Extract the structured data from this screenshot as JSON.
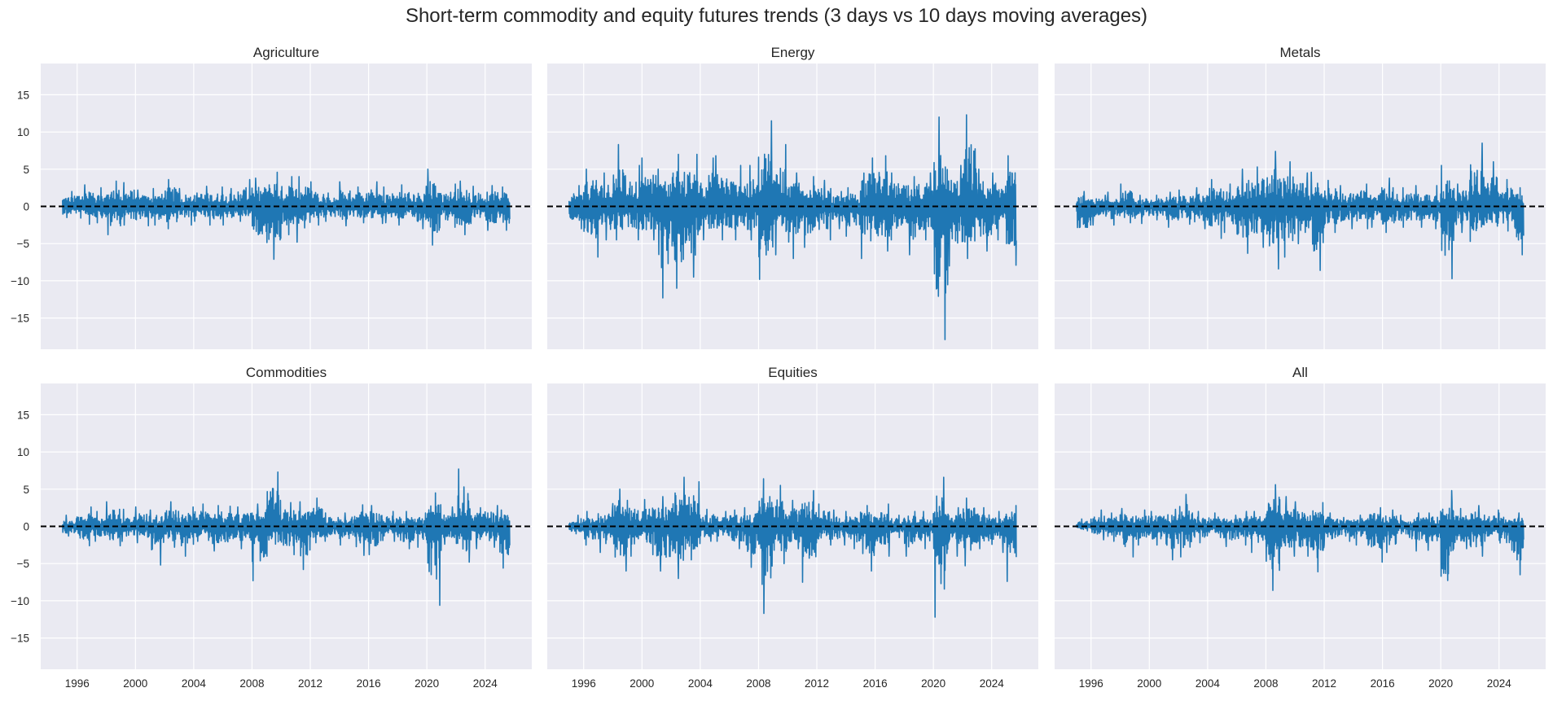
{
  "chart_data": {
    "type": "line",
    "title": "Short-term commodity and equity futures trends (3 days vs 10 days moving averages)",
    "layout": "2 rows x 3 columns, shared axes",
    "xlabel": "",
    "ylabel": "",
    "xlim": [
      1993.5,
      2027.2
    ],
    "ylim": [
      -19.2,
      19.2
    ],
    "x_ticks": [
      "1996",
      "2000",
      "2004",
      "2008",
      "2012",
      "2016",
      "2020",
      "2024"
    ],
    "y_ticks": [
      "15",
      "10",
      "5",
      "0",
      "−5",
      "−10",
      "−15"
    ],
    "grid": true,
    "background": "#eaeaf2",
    "line_color": "#1f77b4",
    "reference_line": {
      "y": 0,
      "style": "dashed",
      "color": "#000000"
    },
    "data_note_years": [
      1995,
      1996,
      1997,
      1998,
      1999,
      2000,
      2001,
      2002,
      2003,
      2004,
      2005,
      2006,
      2007,
      2008,
      2009,
      2010,
      2011,
      2012,
      2013,
      2014,
      2015,
      2016,
      2017,
      2018,
      2019,
      2020,
      2021,
      2022,
      2023,
      2024,
      2025
    ],
    "panels": [
      {
        "title": "Agriculture",
        "yearly_max": [
          2.0,
          2.9,
          2.5,
          3.4,
          3.2,
          2.2,
          2.4,
          3.6,
          2.4,
          2.7,
          2.6,
          2.4,
          3.6,
          3.8,
          4.6,
          4.0,
          4.0,
          3.3,
          1.8,
          3.3,
          2.6,
          3.3,
          2.6,
          2.9,
          2.7,
          5.0,
          3.0,
          3.4,
          2.7,
          2.8,
          2.6
        ],
        "yearly_min": [
          -1.5,
          -2.4,
          -2.2,
          -3.8,
          -2.5,
          -2.6,
          -2.5,
          -3.0,
          -2.5,
          -2.0,
          -2.5,
          -2.5,
          -2.0,
          -5.5,
          -7.1,
          -3.8,
          -4.8,
          -2.5,
          -2.0,
          -2.6,
          -2.2,
          -2.3,
          -2.2,
          -2.5,
          -3.0,
          -5.2,
          -2.8,
          -3.8,
          -2.3,
          -3.2,
          -3.2
        ]
      },
      {
        "title": "Energy",
        "yearly_max": [
          2.8,
          5.0,
          4.5,
          8.3,
          5.5,
          6.5,
          5.0,
          7.0,
          7.0,
          6.5,
          6.8,
          5.5,
          5.5,
          11.5,
          8.3,
          4.5,
          4.0,
          3.5,
          2.0,
          2.5,
          6.5,
          6.8,
          4.5,
          4.0,
          4.5,
          12.0,
          5.5,
          12.3,
          5.0,
          4.5,
          6.8
        ],
        "yearly_min": [
          -3.0,
          -6.8,
          -4.5,
          -4.5,
          -4.5,
          -4.5,
          -12.3,
          -11.0,
          -9.5,
          -4.5,
          -4.5,
          -4.5,
          -4.5,
          -9.8,
          -6.5,
          -7.0,
          -5.5,
          -4.5,
          -3.0,
          -4.0,
          -7.0,
          -6.0,
          -4.5,
          -6.5,
          -4.5,
          -17.9,
          -8.0,
          -7.0,
          -6.0,
          -4.5,
          -7.9
        ]
      },
      {
        "title": "Metals",
        "yearly_max": [
          2.0,
          1.5,
          1.9,
          3.0,
          1.5,
          1.5,
          1.9,
          2.2,
          2.5,
          3.6,
          3.0,
          5.0,
          5.3,
          7.4,
          6.0,
          4.5,
          4.6,
          3.5,
          2.8,
          3.0,
          2.5,
          3.8,
          2.5,
          2.8,
          2.8,
          5.5,
          3.0,
          8.5,
          6.0,
          3.6,
          2.5
        ],
        "yearly_min": [
          -4.2,
          -2.5,
          -2.5,
          -2.2,
          -2.3,
          -1.8,
          -2.8,
          -2.4,
          -3.0,
          -4.3,
          -3.5,
          -6.3,
          -5.5,
          -8.4,
          -6.8,
          -5.0,
          -8.6,
          -3.5,
          -3.0,
          -3.0,
          -2.8,
          -3.5,
          -2.8,
          -2.8,
          -3.0,
          -9.7,
          -3.5,
          -4.7,
          -4.0,
          -3.3,
          -6.5
        ]
      },
      {
        "title": "Commodities",
        "yearly_max": [
          1.5,
          2.6,
          2.0,
          3.3,
          2.3,
          2.6,
          2.2,
          3.3,
          2.6,
          3.0,
          2.8,
          2.7,
          2.6,
          3.0,
          7.3,
          3.2,
          3.3,
          3.8,
          1.8,
          1.8,
          2.9,
          2.8,
          2.0,
          2.0,
          1.8,
          4.5,
          2.6,
          7.7,
          2.5,
          2.8,
          2.2
        ],
        "yearly_min": [
          -1.3,
          -2.6,
          -2.0,
          -2.6,
          -2.0,
          -2.2,
          -5.2,
          -2.8,
          -4.0,
          -2.0,
          -3.3,
          -3.2,
          -3.0,
          -7.3,
          -4.0,
          -3.8,
          -5.8,
          -2.2,
          -2.0,
          -2.5,
          -3.9,
          -3.8,
          -2.0,
          -3.0,
          -2.8,
          -10.6,
          -2.4,
          -4.8,
          -3.0,
          -2.8,
          -5.6
        ]
      },
      {
        "title": "Equities",
        "yearly_max": [
          1.5,
          2.0,
          2.5,
          5.0,
          3.5,
          3.6,
          4.0,
          6.6,
          6.0,
          2.3,
          2.0,
          2.2,
          2.5,
          6.4,
          5.5,
          3.5,
          4.8,
          3.0,
          2.2,
          2.0,
          2.8,
          3.0,
          1.5,
          2.0,
          2.0,
          6.6,
          2.5,
          3.8,
          2.5,
          2.0,
          2.8
        ],
        "yearly_min": [
          -1.0,
          -2.5,
          -3.5,
          -6.0,
          -4.0,
          -3.8,
          -6.0,
          -7.0,
          -4.5,
          -2.0,
          -2.0,
          -3.0,
          -5.5,
          -11.7,
          -5.0,
          -3.0,
          -7.5,
          -2.5,
          -2.5,
          -3.0,
          -6.0,
          -4.0,
          -1.5,
          -4.0,
          -3.0,
          -12.2,
          -4.0,
          -5.3,
          -3.0,
          -3.5,
          -7.4
        ]
      },
      {
        "title": "All",
        "yearly_max": [
          1.0,
          2.2,
          1.8,
          2.4,
          2.2,
          2.0,
          2.3,
          4.3,
          2.0,
          1.8,
          1.5,
          2.0,
          2.0,
          5.6,
          4.0,
          3.3,
          3.2,
          1.8,
          1.2,
          1.5,
          2.5,
          2.2,
          1.5,
          1.8,
          1.8,
          4.8,
          2.4,
          2.8,
          2.2,
          1.8,
          1.8
        ],
        "yearly_min": [
          -0.6,
          -1.8,
          -2.0,
          -4.1,
          -2.5,
          -2.5,
          -4.5,
          -4.1,
          -2.2,
          -1.5,
          -2.7,
          -2.5,
          -3.5,
          -8.6,
          -4.0,
          -4.0,
          -6.1,
          -2.5,
          -2.0,
          -2.5,
          -4.8,
          -3.5,
          -1.5,
          -3.3,
          -3.2,
          -10.4,
          -3.0,
          -4.0,
          -2.0,
          -3.2,
          -6.5
        ]
      }
    ]
  }
}
